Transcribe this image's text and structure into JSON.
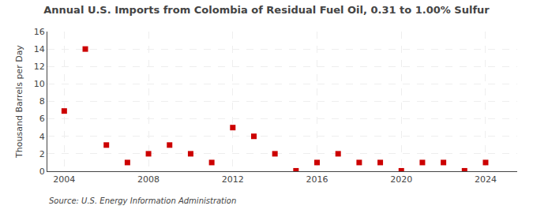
{
  "chart_data": {
    "type": "scatter",
    "title": "Annual U.S. Imports from Colombia of Residual Fuel Oil, 0.31 to 1.00% Sulfur",
    "ylabel": "Thousand Barrels per Day",
    "annotations": [
      "Source: U.S. Energy Information Administration"
    ],
    "x": [
      2004,
      2005,
      2006,
      2007,
      2008,
      2009,
      2010,
      2011,
      2012,
      2013,
      2014,
      2015,
      2016,
      2017,
      2018,
      2019,
      2020,
      2021,
      2022,
      2023,
      2024
    ],
    "values": [
      6.9,
      14.0,
      3.0,
      1.0,
      2.0,
      3.0,
      2.0,
      1.0,
      5.0,
      4.0,
      2.0,
      0.05,
      1.0,
      2.0,
      1.0,
      1.0,
      0.05,
      1.0,
      1.0,
      0.05,
      1.0
    ],
    "color": "#cc0000",
    "marker": "square",
    "xlim": [
      2003.2,
      2025.5
    ],
    "xticks": [
      2004,
      2008,
      2012,
      2016,
      2020,
      2024
    ],
    "ylim": [
      0,
      16
    ],
    "yticks": [
      0,
      2,
      4,
      6,
      8,
      10,
      12,
      14,
      16
    ],
    "grid": true
  }
}
